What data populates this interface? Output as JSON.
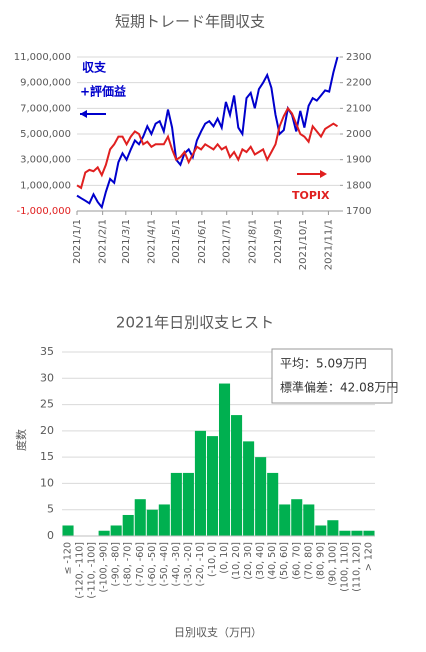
{
  "chart_data": [
    {
      "type": "line",
      "title": "短期トレード年間収支",
      "annotations": [
        "収支",
        "+評価益",
        "TOPIX"
      ],
      "x": [
        0,
        5,
        10,
        15,
        20,
        25,
        30,
        35,
        40,
        45,
        50,
        55,
        60,
        65,
        70,
        75,
        80,
        85,
        90,
        95,
        100,
        105,
        110,
        115,
        120,
        125,
        130,
        135,
        140,
        145,
        150,
        155,
        160,
        165,
        170,
        175,
        180,
        185,
        190,
        195,
        200,
        205,
        210,
        215,
        220,
        225,
        230,
        235,
        240,
        245,
        250,
        255,
        260,
        265,
        270,
        275,
        280,
        285,
        290,
        295,
        300,
        305,
        310,
        315
      ],
      "xlim": [
        0,
        318
      ],
      "xticks": [
        {
          "value": 0,
          "label": "2021/1/1"
        },
        {
          "value": 31,
          "label": "2021/2/1"
        },
        {
          "value": 59,
          "label": "2021/3/1"
        },
        {
          "value": 90,
          "label": "2021/4/1"
        },
        {
          "value": 120,
          "label": "2021/5/1"
        },
        {
          "value": 151,
          "label": "2021/6/1"
        },
        {
          "value": 181,
          "label": "2021/7/1"
        },
        {
          "value": 212,
          "label": "2021/8/1"
        },
        {
          "value": 243,
          "label": "2021/9/1"
        },
        {
          "value": 273,
          "label": "2021/10/1"
        },
        {
          "value": 304,
          "label": "2021/11/1"
        }
      ],
      "ylim": [
        -1000000,
        11000000
      ],
      "yticks": [
        {
          "value": -1000000,
          "label": "-1,000,000"
        },
        {
          "value": 1000000,
          "label": "1,000,000"
        },
        {
          "value": 3000000,
          "label": "3,000,000"
        },
        {
          "value": 5000000,
          "label": "5,000,000"
        },
        {
          "value": 7000000,
          "label": "7,000,000"
        },
        {
          "value": 9000000,
          "label": "9,000,000"
        },
        {
          "value": 11000000,
          "label": "11,000,000"
        }
      ],
      "y2lim": [
        1700,
        2300
      ],
      "y2ticks": [
        1700,
        1800,
        1900,
        2000,
        2100,
        2200,
        2300
      ],
      "grid": true,
      "series": [
        {
          "color": "#0000cc",
          "values": [
            200000,
            0,
            -200000,
            -400000,
            300000,
            -300000,
            -700000,
            500000,
            1500000,
            1200000,
            2800000,
            3500000,
            3000000,
            3800000,
            4500000,
            4200000,
            4800000,
            5600000,
            5000000,
            5800000,
            6000000,
            5200000,
            6900000,
            5500000,
            3000000,
            2600000,
            3500000,
            3800000,
            3200000,
            4500000,
            5200000,
            5800000,
            6000000,
            5600000,
            6200000,
            5500000,
            7500000,
            6500000,
            8000000,
            5500000,
            5000000,
            7800000,
            8200000,
            7000000,
            8500000,
            9000000,
            9600000,
            8600000,
            6500000,
            5000000,
            5300000,
            7000000,
            6500000,
            5200000,
            6800000,
            5500000,
            7200000,
            7800000,
            7600000,
            8000000,
            8400000,
            8300000,
            9800000,
            11000000
          ]
        },
        {
          "color": "#e02020",
          "axis": "y2",
          "values": [
            1800,
            1790,
            1850,
            1860,
            1855,
            1870,
            1840,
            1880,
            1940,
            1960,
            1990,
            1990,
            1960,
            1990,
            2010,
            2000,
            1960,
            1970,
            1950,
            1960,
            1960,
            1960,
            1990,
            1940,
            1900,
            1910,
            1930,
            1890,
            1920,
            1950,
            1940,
            1960,
            1950,
            1940,
            1960,
            1940,
            1950,
            1910,
            1930,
            1900,
            1940,
            1930,
            1950,
            1920,
            1930,
            1940,
            1900,
            1930,
            1960,
            2030,
            2070,
            2100,
            2080,
            2040,
            2000,
            1990,
            1970,
            2030,
            2010,
            1990,
            2020,
            2030,
            2040,
            2030
          ]
        }
      ]
    },
    {
      "type": "bar",
      "title": "2021年日別収支ヒスト",
      "ylabel": "度数",
      "xlabel": "日別収支（万円）",
      "annotations": [
        "平均：5.09万円",
        "標準偏差：42.08万円"
      ],
      "categories": [
        "≤ -120",
        "(-120, -110]",
        "(-110, -100]",
        "(-100, -90]",
        "(-90, -80]",
        "(-80, -70]",
        "(-70, -60]",
        "(-60, -50]",
        "(-50, -40]",
        "(-40, -30]",
        "(-30, -20]",
        "(-20, -10]",
        "(-10, 0]",
        "(0, 10]",
        "(10, 20]",
        "(20, 30]",
        "(30, 40]",
        "(40, 50]",
        "(50, 60]",
        "(60, 70]",
        "(70, 80]",
        "(80, 90]",
        "(90, 100]",
        "(100, 110]",
        "(110, 120]",
        "> 120"
      ],
      "values": [
        2,
        0,
        0,
        1,
        2,
        4,
        7,
        5,
        6,
        12,
        12,
        20,
        19,
        29,
        23,
        18,
        15,
        12,
        6,
        7,
        6,
        2,
        3,
        1,
        1,
        1
      ],
      "color": "#00b050",
      "ylim": [
        0,
        35
      ],
      "yticks": [
        0,
        5,
        10,
        15,
        20,
        25,
        30,
        35
      ],
      "grid": true
    }
  ]
}
